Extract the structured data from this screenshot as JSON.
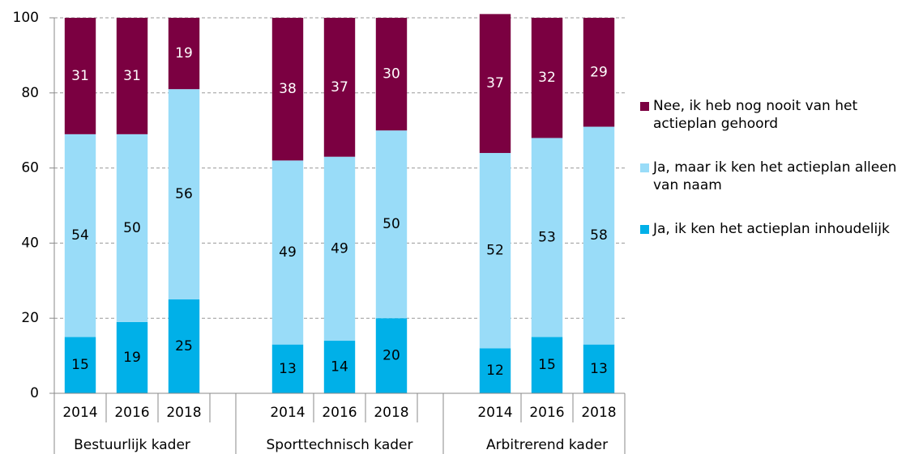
{
  "chart_data": {
    "type": "stacked_bar",
    "groups": [
      {
        "name": "Bestuurlijk kader",
        "categories": [
          "2014",
          "2016",
          "2018"
        ]
      },
      {
        "name": "Sporttechnisch kader",
        "categories": [
          "2014",
          "2016",
          "2018"
        ]
      },
      {
        "name": "Arbitrerend kader",
        "categories": [
          "2014",
          "2016",
          "2018"
        ]
      }
    ],
    "series": [
      {
        "name": "Ja, ik ken het actieplan inhoudelijk",
        "color": "#00b0e8",
        "label_color": "#000000",
        "values": [
          15,
          19,
          25,
          13,
          14,
          20,
          12,
          15,
          13
        ]
      },
      {
        "name": "Ja, maar ik ken het actieplan alleen van naam",
        "color": "#99dcf8",
        "label_color": "#000000",
        "values": [
          54,
          50,
          56,
          49,
          49,
          50,
          52,
          53,
          58
        ]
      },
      {
        "name": "Nee, ik heb nog nooit van het actieplan gehoord",
        "color": "#7b0041",
        "label_color": "#ffffff",
        "values": [
          31,
          31,
          19,
          38,
          37,
          30,
          37,
          32,
          29
        ]
      }
    ],
    "ylim": [
      0,
      100
    ],
    "yticks": [
      0,
      20,
      40,
      60,
      80,
      100
    ],
    "grid": true,
    "legend": "right"
  }
}
